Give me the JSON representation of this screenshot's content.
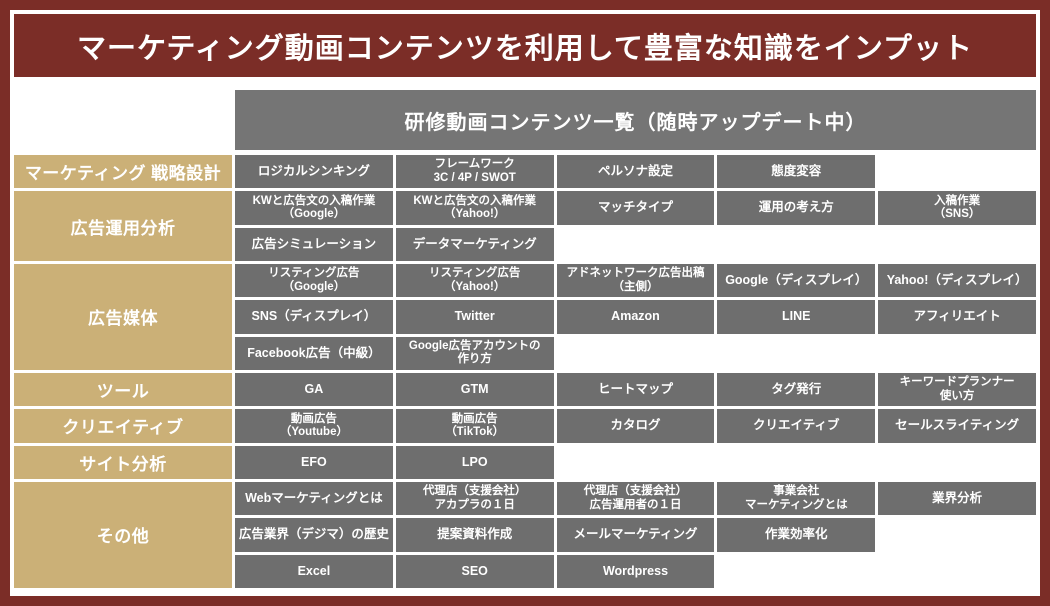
{
  "page": {
    "title": "マーケティング動画コンテンツを利用して豊富な知識をインプット",
    "table_header": "研修動画コンテンツ一覧（随時アップデート中）"
  },
  "colors": {
    "frame_maroon": "#7B2D27",
    "category_gold": "#CBB077",
    "cell_gray": "#6E6E6E",
    "header_gray": "#757575",
    "text_white": "#FFFFFF",
    "background_white": "#FFFFFF"
  },
  "table": {
    "categories": [
      {
        "label": "マーケティング 戦略設計",
        "rowspan": 1
      },
      {
        "label": "広告運用分析",
        "rowspan": 2
      },
      {
        "label": "広告媒体",
        "rowspan": 3
      },
      {
        "label": "ツール",
        "rowspan": 1
      },
      {
        "label": "クリエイティブ",
        "rowspan": 1
      },
      {
        "label": "サイト分析",
        "rowspan": 1
      },
      {
        "label": "その他",
        "rowspan": 3
      }
    ],
    "rows": [
      [
        "ロジカルシンキング",
        "フレームワーク\n3C / 4P / SWOT",
        "ペルソナ設定",
        "態度変容",
        null
      ],
      [
        "KWと広告文の入稿作業\n（Google）",
        "KWと広告文の入稿作業\n（Yahoo!）",
        "マッチタイプ",
        "運用の考え方",
        "入稿作業\n（SNS）"
      ],
      [
        "広告シミュレーション",
        "データマーケティング",
        null,
        null,
        null
      ],
      [
        "リスティング広告\n（Google）",
        "リスティング広告\n（Yahoo!）",
        "アドネットワーク広告出稿\n（主側）",
        "Google（ディスプレイ）",
        "Yahoo!（ディスプレイ）"
      ],
      [
        "SNS（ディスプレイ）",
        "Twitter",
        "Amazon",
        "LINE",
        "アフィリエイト"
      ],
      [
        "Facebook広告（中級）",
        "Google広告アカウントの\n作り方",
        null,
        null,
        null
      ],
      [
        "GA",
        "GTM",
        "ヒートマップ",
        "タグ発行",
        "キーワードプランナー\n使い方"
      ],
      [
        "動画広告\n（Youtube）",
        "動画広告\n（TikTok）",
        "カタログ",
        "クリエイティブ",
        "セールスライティング"
      ],
      [
        "EFO",
        "LPO",
        null,
        null,
        null
      ],
      [
        "Webマーケティングとは",
        "代理店（支援会社）\nアカプラの１日",
        "代理店（支援会社）\n広告運用者の１日",
        "事業会社\nマーケティングとは",
        "業界分析"
      ],
      [
        "広告業界（デジマ）の歴史",
        "提案資料作成",
        "メールマーケティング",
        "作業効率化",
        null
      ],
      [
        "Excel",
        "SEO",
        "Wordpress",
        null,
        null
      ]
    ]
  }
}
